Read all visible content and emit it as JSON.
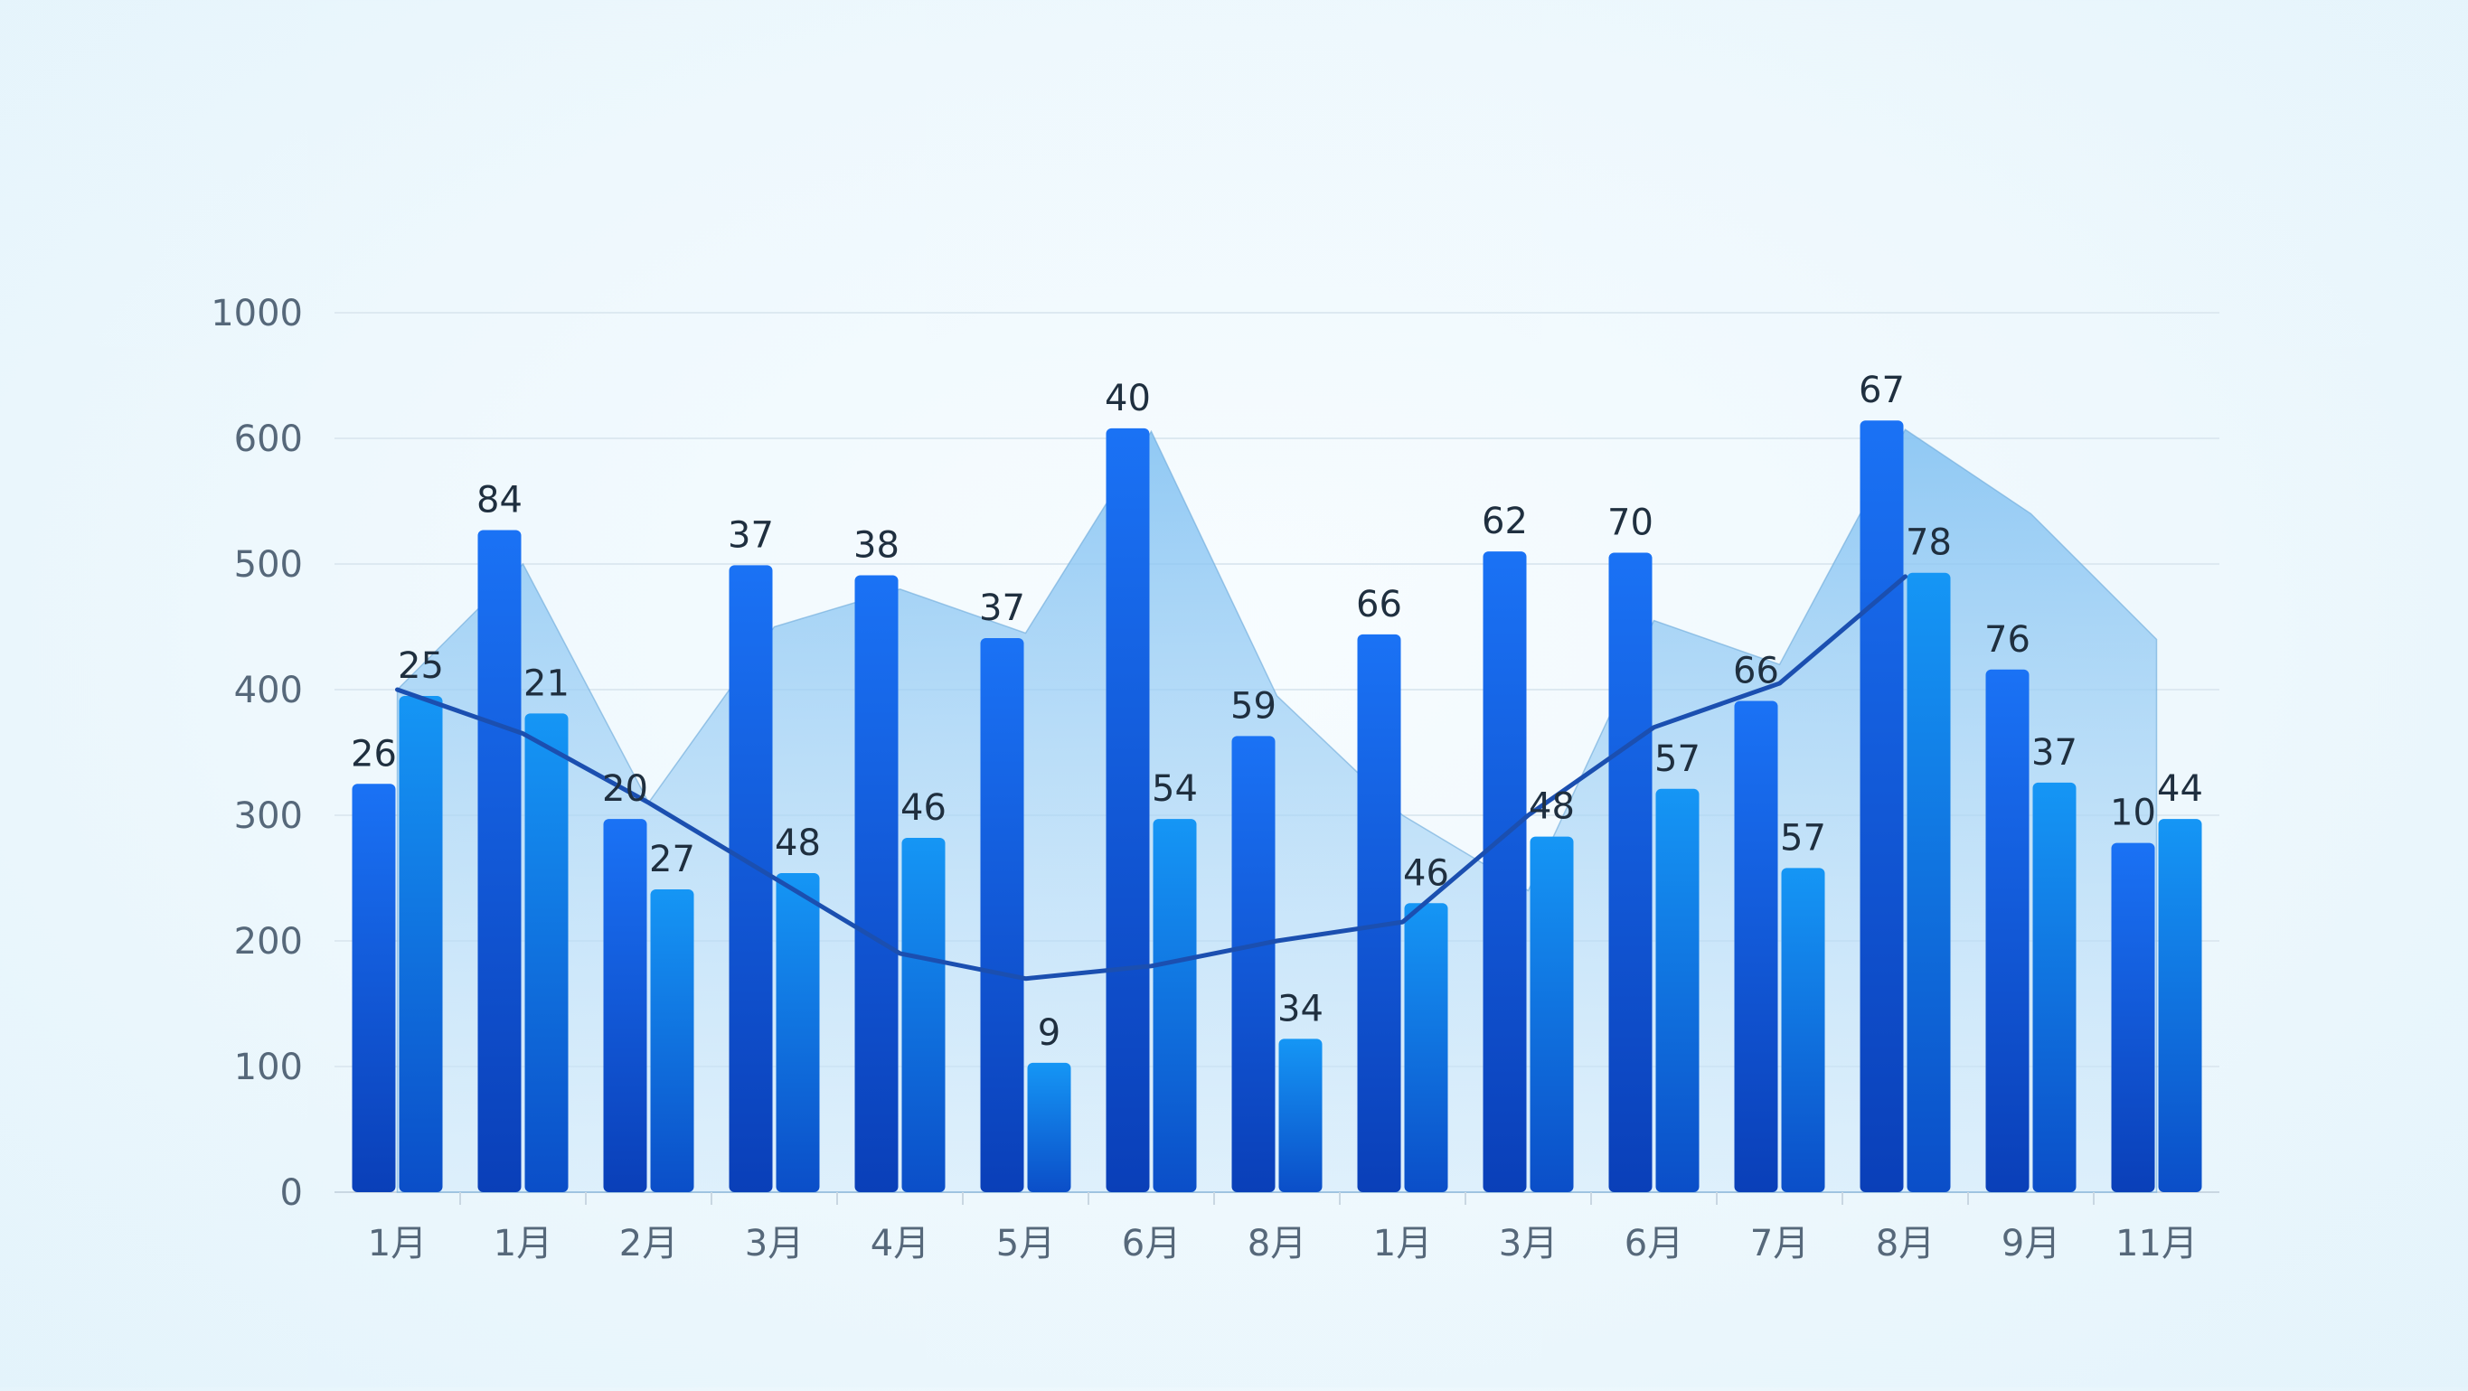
{
  "chart_data": {
    "type": "bar",
    "title": "",
    "xlabel": "",
    "ylabel": "",
    "y_ticks": [
      "0",
      "100",
      "200",
      "300",
      "400",
      "500",
      "600",
      "1000"
    ],
    "categories": [
      "1月",
      "1月",
      "2月",
      "3月",
      "4月",
      "5月",
      "6月",
      "8月",
      "1月",
      "3月",
      "6月",
      "7月",
      "8月",
      "9月",
      "11月"
    ],
    "series": [
      {
        "kind": "bar",
        "color": "#0a5ee8",
        "values": [
          325,
          527,
          297,
          499,
          491,
          441,
          632,
          363,
          444,
          510,
          509,
          391,
          657,
          416,
          278
        ],
        "labels": [
          "26",
          "84",
          "20",
          "37",
          "38",
          "37",
          "40",
          "59",
          "66",
          "62",
          "70",
          "66",
          "67",
          "76",
          "10"
        ]
      },
      {
        "kind": "bar",
        "color": "#0f86f0",
        "values": [
          395,
          381,
          241,
          254,
          282,
          103,
          297,
          122,
          230,
          283,
          321,
          258,
          493,
          326,
          297
        ],
        "labels": [
          "25",
          "21",
          "27",
          "48",
          "46",
          "9",
          "54",
          "34",
          "46",
          "48",
          "57",
          "57",
          "78",
          "37",
          "44"
        ]
      },
      {
        "kind": "area",
        "color": "#8cc7f3",
        "values": [
          400,
          500,
          310,
          450,
          480,
          445,
          622,
          395,
          300,
          240,
          455,
          420,
          628,
          540,
          440
        ]
      },
      {
        "kind": "line",
        "color": "#1b4fb0",
        "values": [
          400,
          365,
          310,
          250,
          190,
          170,
          180,
          200,
          215,
          300,
          370,
          405,
          490,
          null,
          null
        ]
      }
    ]
  }
}
